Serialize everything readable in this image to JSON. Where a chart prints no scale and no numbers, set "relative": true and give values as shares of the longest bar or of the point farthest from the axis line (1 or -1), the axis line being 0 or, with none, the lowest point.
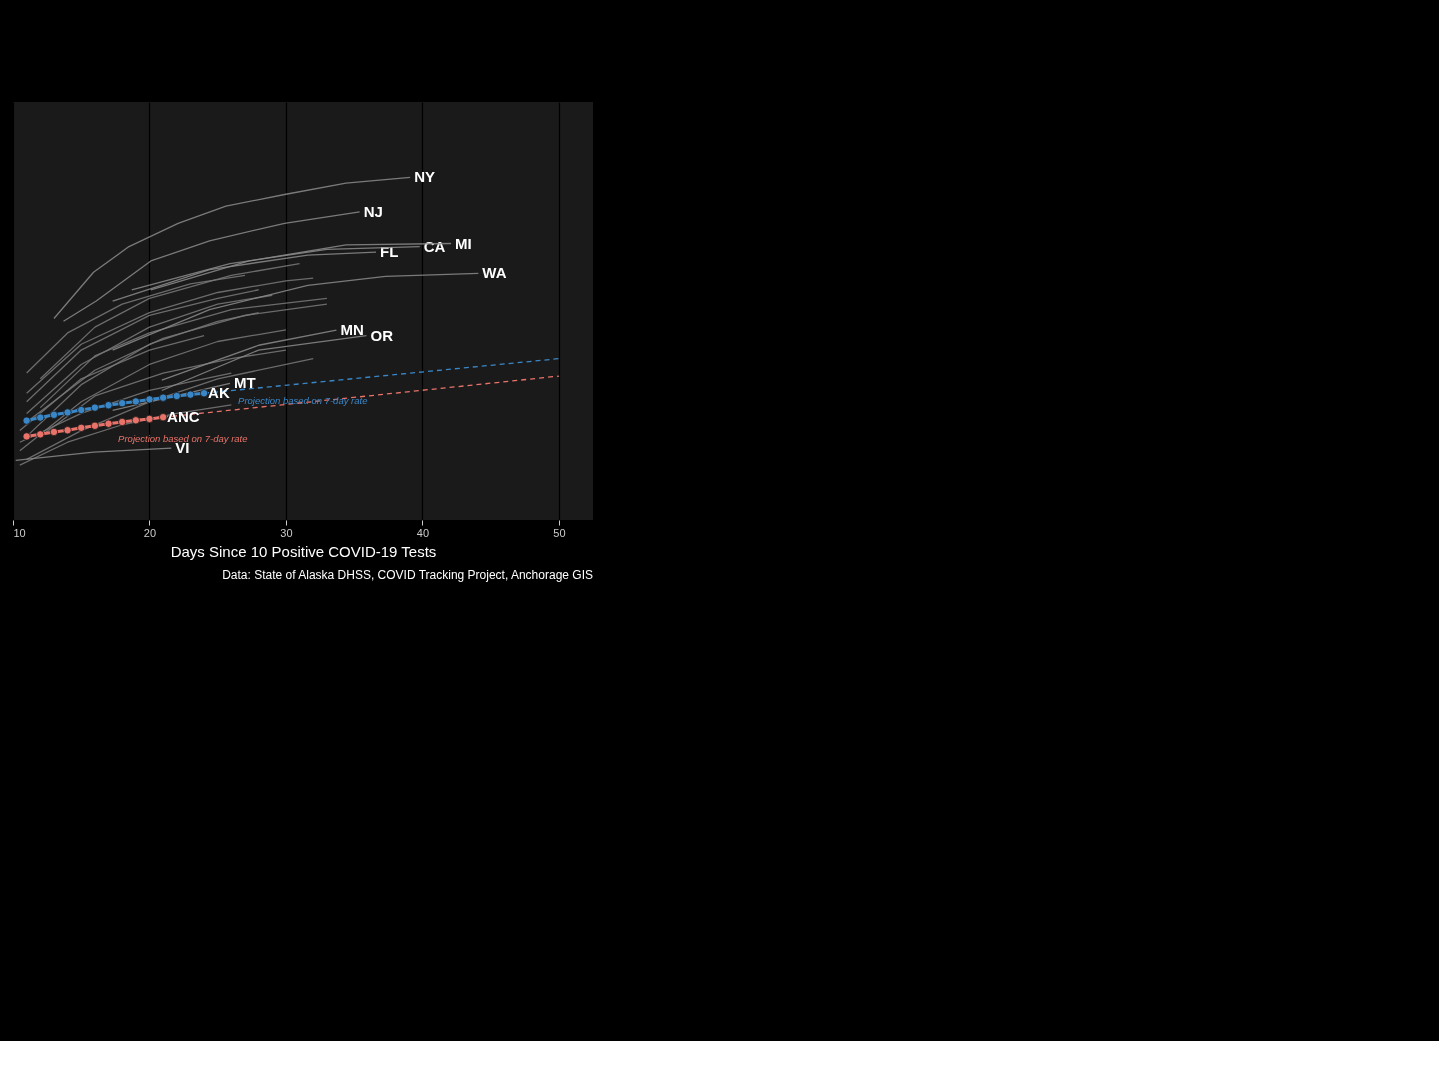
{
  "chart_data": {
    "type": "line",
    "relative": true,
    "xlabel": "Days Since 10 Positive COVID-19 Tests",
    "xlim": [
      10,
      52.5
    ],
    "xticks": [
      10,
      20,
      30,
      40,
      50
    ],
    "grid": "x",
    "marker": "none",
    "line_style": "solid",
    "series": [
      {
        "color": "#7a7a7a",
        "x": [
          11,
          15,
          20,
          25,
          28
        ],
        "values": [
          0.244,
          0.395,
          0.513,
          0.58,
          0.605
        ]
      },
      {
        "color": "#7a7a7a",
        "x": [
          11,
          15,
          20,
          25,
          29
        ],
        "values": [
          0.311,
          0.454,
          0.563,
          0.63,
          0.656
        ]
      },
      {
        "color": "#7a7a7a",
        "x": [
          10.5,
          15,
          20,
          25,
          30
        ],
        "values": [
          0.202,
          0.345,
          0.454,
          0.521,
          0.555
        ]
      },
      {
        "color": "#7a7a7a",
        "x": [
          11,
          15,
          20,
          25,
          30,
          32
        ],
        "values": [
          0.37,
          0.513,
          0.605,
          0.664,
          0.698,
          0.706
        ]
      },
      {
        "color": "#7a7a7a",
        "x": [
          12,
          16,
          20,
          26,
          33
        ],
        "values": [
          0.328,
          0.479,
          0.546,
          0.614,
          0.647
        ]
      },
      {
        "color": "#7a7a7a",
        "x": [
          10.5,
          15,
          20,
          24
        ],
        "values": [
          0.261,
          0.412,
          0.496,
          0.538
        ]
      },
      {
        "color": "#7a7a7a",
        "x": [
          11,
          15,
          20,
          25,
          32
        ],
        "values": [
          0.177,
          0.261,
          0.345,
          0.412,
          0.471
        ]
      },
      {
        "color": "#7a7a7a",
        "x": [
          12,
          16,
          20,
          26,
          31
        ],
        "values": [
          0.412,
          0.563,
          0.647,
          0.714,
          0.748
        ]
      },
      {
        "color": "#7a7a7a",
        "x": [
          10.5,
          15,
          20,
          26
        ],
        "values": [
          0.227,
          0.311,
          0.378,
          0.429
        ]
      },
      {
        "color": "#7a7a7a",
        "x": [
          11,
          16,
          21,
          27,
          33
        ],
        "values": [
          0.286,
          0.437,
          0.53,
          0.597,
          0.63
        ]
      },
      {
        "color": "#7a7a7a",
        "x": [
          10.5,
          14,
          18,
          22,
          26
        ],
        "values": [
          0.16,
          0.227,
          0.278,
          0.311,
          0.336
        ]
      },
      {
        "color": "#7a7a7a",
        "x": [
          11,
          15,
          20,
          25,
          28
        ],
        "values": [
          0.345,
          0.496,
          0.597,
          0.647,
          0.672
        ]
      },
      {
        "color": "#7a7a7a",
        "x": [
          12,
          16,
          21,
          26,
          30
        ],
        "values": [
          0.244,
          0.362,
          0.429,
          0.471,
          0.496
        ]
      },
      {
        "color": "#7a7a7a",
        "x": [
          11,
          14,
          18,
          23,
          27
        ],
        "values": [
          0.429,
          0.546,
          0.63,
          0.689,
          0.714
        ]
      },
      {
        "name": "NY",
        "color": "#8c8c8c",
        "x": [
          13.0,
          15.9,
          18.5,
          22.1,
          25.6,
          29.9,
          34.4,
          39.1
        ],
        "values": [
          0.588,
          0.723,
          0.798,
          0.866,
          0.916,
          0.95,
          0.983,
          1.0
        ]
      },
      {
        "name": "NJ",
        "color": "#8c8c8c",
        "x": [
          13.7,
          16.1,
          20.1,
          24.4,
          29.9,
          35.4
        ],
        "values": [
          0.58,
          0.639,
          0.756,
          0.815,
          0.866,
          0.899
        ]
      },
      {
        "name": "FL",
        "color": "#8c8c8c",
        "x": [
          17.3,
          24.4,
          31.6,
          36.6
        ],
        "values": [
          0.639,
          0.731,
          0.773,
          0.782
        ]
      },
      {
        "name": "CA",
        "color": "#8c8c8c",
        "x": [
          18.7,
          25.9,
          33.0,
          39.8
        ],
        "values": [
          0.672,
          0.748,
          0.79,
          0.798
        ]
      },
      {
        "name": "MI",
        "color": "#8c8c8c",
        "x": [
          20.1,
          27.3,
          34.4,
          42.1
        ],
        "values": [
          0.672,
          0.756,
          0.803,
          0.807
        ]
      },
      {
        "name": "WA",
        "color": "#8c8c8c",
        "x": [
          17.3,
          24.4,
          31.6,
          37.3,
          44.1
        ],
        "values": [
          0.496,
          0.614,
          0.685,
          0.711,
          0.72
        ]
      },
      {
        "name": "MN",
        "color": "#8c8c8c",
        "x": [
          20.9,
          28.0,
          33.7
        ],
        "values": [
          0.408,
          0.51,
          0.554
        ]
      },
      {
        "name": "OR",
        "color": "#8c8c8c",
        "x": [
          20.9,
          28.0,
          35.9
        ],
        "values": [
          0.378,
          0.496,
          0.538
        ]
      },
      {
        "name": "MT",
        "color": "#8c8c8c",
        "x": [
          17.3,
          25.9
        ],
        "values": [
          0.32,
          0.399
        ]
      },
      {
        "name": "VI",
        "color": "#8c8c8c",
        "x": [
          10.2,
          15.9,
          21.6
        ],
        "values": [
          0.174,
          0.198,
          0.21
        ]
      },
      {
        "color": "#3a87c8",
        "line_style": "dashed",
        "x": [
          24,
          50
        ],
        "values": [
          0.37,
          0.471
        ]
      },
      {
        "color": "#e8736a",
        "line_style": "dashed",
        "x": [
          21,
          50
        ],
        "values": [
          0.3,
          0.42
        ]
      },
      {
        "name": "AK",
        "color": "#3a87c8",
        "marker": "circle",
        "x": [
          11,
          12,
          13,
          14,
          15,
          16,
          17,
          18,
          19,
          20,
          21,
          22,
          23,
          24
        ],
        "values": [
          0.29,
          0.299,
          0.307,
          0.314,
          0.321,
          0.328,
          0.335,
          0.341,
          0.346,
          0.352,
          0.357,
          0.362,
          0.366,
          0.37
        ]
      },
      {
        "name": "ANC",
        "color": "#e8736a",
        "marker": "circle",
        "x": [
          11,
          12,
          13,
          14,
          15,
          16,
          17,
          18,
          19,
          20,
          21
        ],
        "values": [
          0.244,
          0.25,
          0.257,
          0.262,
          0.269,
          0.275,
          0.281,
          0.286,
          0.291,
          0.295,
          0.3
        ]
      }
    ],
    "annotations": [
      "Projection based on 7-day rate",
      "Projection based on 7-day rate",
      "Data: State of Alaska DHSS, COVID Tracking Project, Anchorage GIS"
    ]
  }
}
